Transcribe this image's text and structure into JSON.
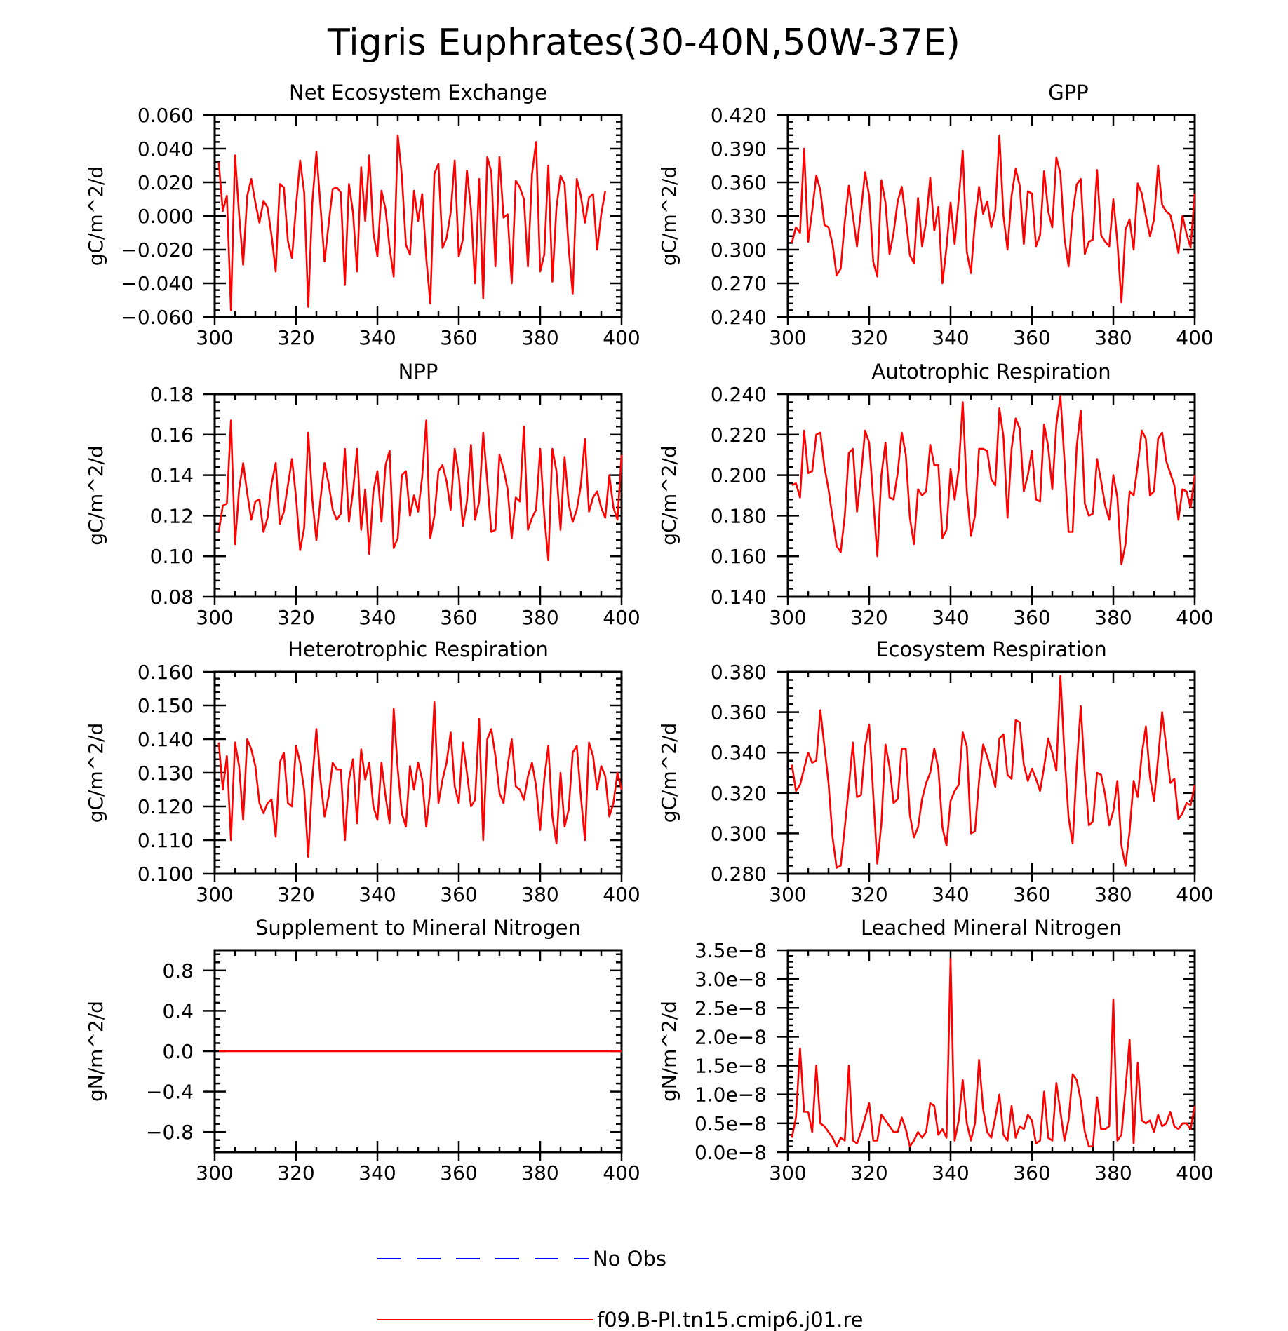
{
  "figure": {
    "title": "Tigris Euphrates(30-40N,50W-37E)"
  },
  "legend": [
    {
      "label": "No Obs",
      "color": "#0000ff",
      "style": "dashed"
    },
    {
      "label": "f09.B-PI.tn15.cmip6.j01.re",
      "color": "#ff0000",
      "style": "solid"
    }
  ],
  "chart_data": [
    {
      "type": "line",
      "title": "Net Ecosystem Exchange",
      "ylabel": "gC/m^2/d",
      "xlim": [
        300,
        400
      ],
      "ylim": [
        -0.06,
        0.06
      ],
      "xticks": [
        300,
        320,
        340,
        360,
        380,
        400
      ],
      "yticks": [
        -0.06,
        -0.04,
        -0.02,
        0.0,
        0.02,
        0.04,
        0.06
      ],
      "ytick_labels": [
        "-0.060",
        "-0.040",
        "-0.020",
        "0.000",
        "0.020",
        "0.040",
        "0.060"
      ],
      "series": [
        {
          "name": "f09.B-PI.tn15.cmip6.j01.re",
          "color": "#ff0000",
          "x_start": 301,
          "x_step": 1,
          "values": [
            0.032,
            0.003,
            0.012,
            -0.056,
            0.036,
            0.001,
            -0.029,
            0.012,
            0.022,
            0.008,
            -0.004,
            0.009,
            0.005,
            -0.012,
            -0.033,
            0.019,
            0.017,
            -0.015,
            -0.025,
            0.006,
            0.033,
            0.014,
            -0.054,
            0.008,
            0.038,
            0.006,
            -0.027,
            -0.005,
            0.016,
            0.017,
            0.014,
            -0.041,
            0.019,
            0.002,
            -0.033,
            0.029,
            -0.003,
            0.036,
            -0.01,
            -0.024,
            0.015,
            0.004,
            -0.019,
            -0.036,
            0.048,
            0.024,
            -0.017,
            -0.023,
            0.015,
            -0.003,
            0.013,
            -0.025,
            -0.052,
            0.025,
            0.031,
            -0.019,
            -0.013,
            0.002,
            0.033,
            -0.024,
            -0.014,
            0.027,
            0.004,
            -0.04,
            0.022,
            -0.049,
            0.035,
            0.026,
            -0.03,
            0.035,
            -0.001,
            0.001,
            -0.04,
            0.021,
            0.017,
            0.01,
            -0.03,
            0.025,
            0.044,
            -0.033,
            -0.023,
            0.03,
            -0.039,
            0.005,
            0.024,
            0.019,
            -0.019,
            -0.046,
            0.022,
            0.012,
            -0.004,
            0.011,
            0.013,
            -0.02,
            0.001,
            0.015
          ]
        }
      ]
    },
    {
      "type": "line",
      "title": "GPP",
      "ylabel": "gC/m^2/d",
      "xlim": [
        300,
        400
      ],
      "ylim": [
        0.24,
        0.42
      ],
      "xticks": [
        300,
        320,
        340,
        360,
        380,
        400
      ],
      "yticks": [
        0.24,
        0.27,
        0.3,
        0.33,
        0.36,
        0.39,
        0.42
      ],
      "ytick_labels": [
        "0.240",
        "0.270",
        "0.300",
        "0.330",
        "0.360",
        "0.390",
        "0.420"
      ],
      "series": [
        {
          "name": "f09.B-PI.tn15.cmip6.j01.re",
          "color": "#ff0000",
          "x_start": 301,
          "x_step": 1,
          "values": [
            0.306,
            0.32,
            0.315,
            0.39,
            0.307,
            0.335,
            0.366,
            0.353,
            0.322,
            0.32,
            0.305,
            0.277,
            0.283,
            0.325,
            0.357,
            0.33,
            0.303,
            0.335,
            0.369,
            0.348,
            0.289,
            0.276,
            0.362,
            0.342,
            0.296,
            0.315,
            0.343,
            0.356,
            0.328,
            0.295,
            0.288,
            0.346,
            0.303,
            0.325,
            0.364,
            0.317,
            0.338,
            0.27,
            0.302,
            0.342,
            0.305,
            0.345,
            0.388,
            0.298,
            0.279,
            0.325,
            0.356,
            0.332,
            0.343,
            0.32,
            0.335,
            0.402,
            0.33,
            0.3,
            0.348,
            0.372,
            0.357,
            0.305,
            0.352,
            0.35,
            0.303,
            0.313,
            0.37,
            0.334,
            0.32,
            0.382,
            0.368,
            0.31,
            0.285,
            0.332,
            0.358,
            0.363,
            0.296,
            0.307,
            0.309,
            0.371,
            0.313,
            0.307,
            0.303,
            0.345,
            0.307,
            0.253,
            0.318,
            0.327,
            0.3,
            0.359,
            0.35,
            0.33,
            0.312,
            0.327,
            0.375,
            0.34,
            0.334,
            0.331,
            0.316,
            0.297,
            0.33,
            0.314,
            0.302,
            0.35
          ]
        }
      ]
    },
    {
      "type": "line",
      "title": "NPP",
      "ylabel": "gC/m^2/d",
      "xlim": [
        300,
        400
      ],
      "ylim": [
        0.08,
        0.18
      ],
      "xticks": [
        300,
        320,
        340,
        360,
        380,
        400
      ],
      "yticks": [
        0.08,
        0.1,
        0.12,
        0.14,
        0.16,
        0.18
      ],
      "ytick_labels": [
        "0.08",
        "0.10",
        "0.12",
        "0.14",
        "0.16",
        "0.18"
      ],
      "series": [
        {
          "name": "f09.B-PI.tn15.cmip6.j01.re",
          "color": "#ff0000",
          "x_start": 301,
          "x_step": 1,
          "values": [
            0.112,
            0.125,
            0.126,
            0.167,
            0.106,
            0.133,
            0.146,
            0.131,
            0.118,
            0.127,
            0.128,
            0.112,
            0.119,
            0.136,
            0.146,
            0.116,
            0.122,
            0.135,
            0.148,
            0.129,
            0.103,
            0.114,
            0.161,
            0.128,
            0.108,
            0.128,
            0.146,
            0.136,
            0.123,
            0.118,
            0.121,
            0.153,
            0.117,
            0.132,
            0.153,
            0.113,
            0.133,
            0.101,
            0.132,
            0.142,
            0.117,
            0.145,
            0.152,
            0.104,
            0.109,
            0.14,
            0.142,
            0.12,
            0.13,
            0.122,
            0.139,
            0.167,
            0.109,
            0.12,
            0.142,
            0.145,
            0.137,
            0.123,
            0.153,
            0.14,
            0.115,
            0.127,
            0.155,
            0.118,
            0.127,
            0.161,
            0.137,
            0.112,
            0.113,
            0.15,
            0.143,
            0.133,
            0.109,
            0.129,
            0.127,
            0.164,
            0.113,
            0.119,
            0.123,
            0.153,
            0.12,
            0.098,
            0.153,
            0.142,
            0.113,
            0.149,
            0.126,
            0.117,
            0.123,
            0.135,
            0.158,
            0.122,
            0.129,
            0.132,
            0.124,
            0.119,
            0.14,
            0.124,
            0.118,
            0.15
          ]
        }
      ]
    },
    {
      "type": "line",
      "title": "Autotrophic Respiration",
      "ylabel": "gC/m^2/d",
      "xlim": [
        300,
        400
      ],
      "ylim": [
        0.14,
        0.24
      ],
      "xticks": [
        300,
        320,
        340,
        360,
        380,
        400
      ],
      "yticks": [
        0.14,
        0.16,
        0.18,
        0.2,
        0.22,
        0.24
      ],
      "ytick_labels": [
        "0.140",
        "0.160",
        "0.180",
        "0.200",
        "0.220",
        "0.240"
      ],
      "series": [
        {
          "name": "f09.B-PI.tn15.cmip6.j01.re",
          "color": "#ff0000",
          "x_start": 301,
          "x_step": 1,
          "values": [
            0.195,
            0.196,
            0.189,
            0.222,
            0.201,
            0.202,
            0.22,
            0.221,
            0.204,
            0.193,
            0.179,
            0.165,
            0.162,
            0.18,
            0.211,
            0.213,
            0.182,
            0.2,
            0.222,
            0.216,
            0.188,
            0.16,
            0.2,
            0.216,
            0.189,
            0.188,
            0.201,
            0.221,
            0.21,
            0.179,
            0.166,
            0.193,
            0.19,
            0.192,
            0.215,
            0.205,
            0.205,
            0.169,
            0.173,
            0.203,
            0.188,
            0.203,
            0.236,
            0.192,
            0.17,
            0.18,
            0.213,
            0.213,
            0.212,
            0.198,
            0.195,
            0.233,
            0.219,
            0.179,
            0.213,
            0.228,
            0.223,
            0.192,
            0.2,
            0.212,
            0.188,
            0.187,
            0.225,
            0.214,
            0.193,
            0.225,
            0.239,
            0.207,
            0.172,
            0.172,
            0.214,
            0.232,
            0.186,
            0.18,
            0.181,
            0.208,
            0.197,
            0.185,
            0.178,
            0.2,
            0.189,
            0.156,
            0.166,
            0.192,
            0.19,
            0.205,
            0.222,
            0.218,
            0.19,
            0.192,
            0.218,
            0.221,
            0.207,
            0.201,
            0.195,
            0.178,
            0.193,
            0.192,
            0.184,
            0.2
          ]
        }
      ]
    },
    {
      "type": "line",
      "title": "Heterotrophic Respiration",
      "ylabel": "gC/m^2/d",
      "xlim": [
        300,
        400
      ],
      "ylim": [
        0.1,
        0.16
      ],
      "xticks": [
        300,
        320,
        340,
        360,
        380,
        400
      ],
      "yticks": [
        0.1,
        0.11,
        0.12,
        0.13,
        0.14,
        0.15,
        0.16
      ],
      "ytick_labels": [
        "0.100",
        "0.110",
        "0.120",
        "0.130",
        "0.140",
        "0.150",
        "0.160"
      ],
      "series": [
        {
          "name": "f09.B-PI.tn15.cmip6.j01.re",
          "color": "#ff0000",
          "x_start": 301,
          "x_step": 1,
          "values": [
            0.139,
            0.125,
            0.135,
            0.11,
            0.139,
            0.132,
            0.116,
            0.14,
            0.137,
            0.132,
            0.121,
            0.118,
            0.121,
            0.122,
            0.111,
            0.133,
            0.136,
            0.121,
            0.12,
            0.138,
            0.133,
            0.125,
            0.105,
            0.128,
            0.143,
            0.128,
            0.117,
            0.123,
            0.133,
            0.131,
            0.131,
            0.11,
            0.128,
            0.134,
            0.115,
            0.137,
            0.128,
            0.133,
            0.12,
            0.116,
            0.133,
            0.123,
            0.115,
            0.149,
            0.131,
            0.118,
            0.114,
            0.132,
            0.125,
            0.133,
            0.128,
            0.114,
            0.125,
            0.151,
            0.121,
            0.128,
            0.133,
            0.142,
            0.126,
            0.121,
            0.139,
            0.13,
            0.12,
            0.122,
            0.146,
            0.11,
            0.14,
            0.143,
            0.135,
            0.124,
            0.121,
            0.132,
            0.14,
            0.126,
            0.125,
            0.122,
            0.129,
            0.133,
            0.126,
            0.113,
            0.128,
            0.138,
            0.117,
            0.109,
            0.13,
            0.114,
            0.119,
            0.136,
            0.138,
            0.123,
            0.11,
            0.139,
            0.135,
            0.125,
            0.132,
            0.129,
            0.117,
            0.121,
            0.13,
            0.125
          ]
        }
      ]
    },
    {
      "type": "line",
      "title": "Ecosystem Respiration",
      "ylabel": "gC/m^2/d",
      "xlim": [
        300,
        400
      ],
      "ylim": [
        0.28,
        0.38
      ],
      "xticks": [
        300,
        320,
        340,
        360,
        380,
        400
      ],
      "yticks": [
        0.28,
        0.3,
        0.32,
        0.34,
        0.36,
        0.38
      ],
      "ytick_labels": [
        "0.280",
        "0.300",
        "0.320",
        "0.340",
        "0.360",
        "0.380"
      ],
      "series": [
        {
          "name": "f09.B-PI.tn15.cmip6.j01.re",
          "color": "#ff0000",
          "x_start": 301,
          "x_step": 1,
          "values": [
            0.334,
            0.321,
            0.324,
            0.332,
            0.34,
            0.335,
            0.336,
            0.361,
            0.343,
            0.325,
            0.298,
            0.283,
            0.284,
            0.303,
            0.323,
            0.345,
            0.318,
            0.319,
            0.343,
            0.354,
            0.319,
            0.285,
            0.305,
            0.344,
            0.333,
            0.315,
            0.317,
            0.342,
            0.342,
            0.309,
            0.298,
            0.303,
            0.317,
            0.325,
            0.33,
            0.342,
            0.332,
            0.303,
            0.294,
            0.316,
            0.321,
            0.324,
            0.35,
            0.343,
            0.3,
            0.301,
            0.326,
            0.344,
            0.338,
            0.331,
            0.323,
            0.347,
            0.349,
            0.329,
            0.327,
            0.356,
            0.355,
            0.334,
            0.326,
            0.332,
            0.327,
            0.321,
            0.333,
            0.347,
            0.34,
            0.331,
            0.378,
            0.339,
            0.308,
            0.295,
            0.333,
            0.363,
            0.329,
            0.304,
            0.306,
            0.33,
            0.329,
            0.319,
            0.304,
            0.311,
            0.326,
            0.294,
            0.284,
            0.301,
            0.326,
            0.318,
            0.339,
            0.353,
            0.328,
            0.316,
            0.337,
            0.36,
            0.343,
            0.325,
            0.327,
            0.307,
            0.31,
            0.315,
            0.314,
            0.324
          ]
        }
      ]
    },
    {
      "type": "line",
      "title": "Supplement to Mineral Nitrogen",
      "ylabel": "gN/m^2/d",
      "xlim": [
        300,
        400
      ],
      "ylim": [
        -1.0,
        1.0
      ],
      "xticks": [
        300,
        320,
        340,
        360,
        380,
        400
      ],
      "yticks": [
        -0.8,
        -0.4,
        0.0,
        0.4,
        0.8
      ],
      "ytick_labels": [
        "-0.8",
        "-0.4",
        "0.0",
        "0.4",
        "0.8"
      ],
      "series": [
        {
          "name": "f09.B-PI.tn15.cmip6.j01.re",
          "color": "#ff0000",
          "x": [
            301,
            400
          ],
          "values": [
            0.0,
            0.0
          ]
        }
      ]
    },
    {
      "type": "line",
      "title": "Leached Mineral Nitrogen",
      "ylabel": "gN/m^2/d",
      "xlim": [
        300,
        400
      ],
      "ylim": [
        0.0,
        3.5e-08
      ],
      "xticks": [
        300,
        320,
        340,
        360,
        380,
        400
      ],
      "yticks": [
        0.0,
        5e-09,
        1e-08,
        1.5e-08,
        2e-08,
        2.5e-08,
        3e-08,
        3.5e-08
      ],
      "ytick_labels": [
        "0.0e-8",
        "0.5e-8",
        "1.0e-8",
        "1.5e-8",
        "2.0e-8",
        "2.5e-8",
        "3.0e-8",
        "3.5e-8"
      ],
      "series": [
        {
          "name": "f09.B-PI.tn15.cmip6.j01.re",
          "color": "#ff0000",
          "x_start": 301,
          "x_step": 1,
          "values": [
            2.5e-09,
            6e-09,
            1.8e-08,
            7e-09,
            7e-09,
            3.5e-09,
            1.5e-08,
            5e-09,
            4.5e-09,
            3.5e-09,
            2.5e-09,
            1e-09,
            2.5e-09,
            2e-09,
            1.5e-08,
            2e-09,
            1.5e-09,
            3.5e-09,
            6e-09,
            8.5e-09,
            2e-09,
            2e-09,
            6.5e-09,
            5.5e-09,
            4.5e-09,
            3.5e-09,
            3.5e-09,
            6e-09,
            4e-09,
            1e-09,
            2e-09,
            3.5e-09,
            2.5e-09,
            3.5e-09,
            8.5e-09,
            8e-09,
            3e-09,
            4e-09,
            2.5e-09,
            3.35e-08,
            2e-09,
            5.5e-09,
            1.25e-08,
            5e-09,
            2e-09,
            5e-09,
            1.6e-08,
            7.5e-09,
            3.5e-09,
            2.5e-09,
            6e-09,
            1e-08,
            3e-09,
            2e-09,
            8e-09,
            2.5e-09,
            4.5e-09,
            4e-09,
            6.5e-09,
            5.5e-09,
            1.5e-09,
            2e-09,
            1.05e-08,
            2.5e-09,
            2e-09,
            1.2e-08,
            7e-09,
            2e-09,
            5.5e-09,
            1.35e-08,
            1.25e-08,
            9e-09,
            3.5e-09,
            1e-09,
            1e-09,
            9.5e-09,
            4e-09,
            4e-09,
            4.5e-09,
            2.65e-08,
            2e-09,
            3e-09,
            1.1e-08,
            1.95e-08,
            1.5e-09,
            1.55e-08,
            5.5e-09,
            5e-09,
            5.5e-09,
            3.5e-09,
            6.5e-09,
            4.5e-09,
            5e-09,
            7e-09,
            4.5e-09,
            4e-09,
            5e-09,
            5e-09,
            4e-09,
            8e-09
          ]
        }
      ]
    }
  ]
}
